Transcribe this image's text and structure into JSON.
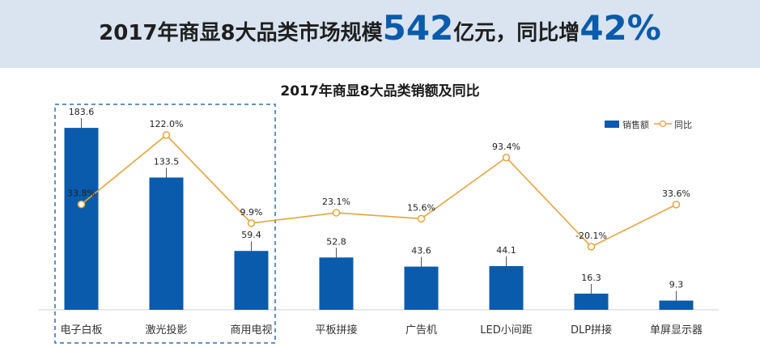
{
  "headline": {
    "prefix": "2017年商显8大品类市场规模",
    "market_size": "542",
    "unit": "亿元，同比增",
    "growth": "42%"
  },
  "colors": {
    "bar": "#0a5bab",
    "line": "#e8a33c",
    "banner": "#d9e4f0",
    "highlight_box": "#2e6fb5"
  },
  "chart_data": {
    "type": "bar",
    "title": "2017年商显8大品类销额及同比",
    "categories": [
      "电子白板",
      "激光投影",
      "商用电视",
      "平板拼接",
      "广告机",
      "LED小间距",
      "DLP拼接",
      "单屏显示器"
    ],
    "series": [
      {
        "name": "销售额",
        "type": "bar",
        "values": [
          183.6,
          133.5,
          59.4,
          52.8,
          43.6,
          44.1,
          16.3,
          9.3
        ],
        "labels": [
          "183.6",
          "133.5",
          "59.4",
          "52.8",
          "43.6",
          "44.1",
          "16.3",
          "9.3"
        ]
      },
      {
        "name": "同比",
        "type": "line",
        "values": [
          33.8,
          122.0,
          9.9,
          23.1,
          15.6,
          93.4,
          -20.1,
          33.6
        ],
        "labels": [
          "33.8%",
          "122.0%",
          "9.9%",
          "23.1%",
          "15.6%",
          "93.4%",
          "-20.1%",
          "33.6%"
        ]
      }
    ],
    "highlighted_categories": [
      "电子白板",
      "激光投影",
      "商用电视"
    ],
    "legend_position": "top-right",
    "grid": false
  }
}
